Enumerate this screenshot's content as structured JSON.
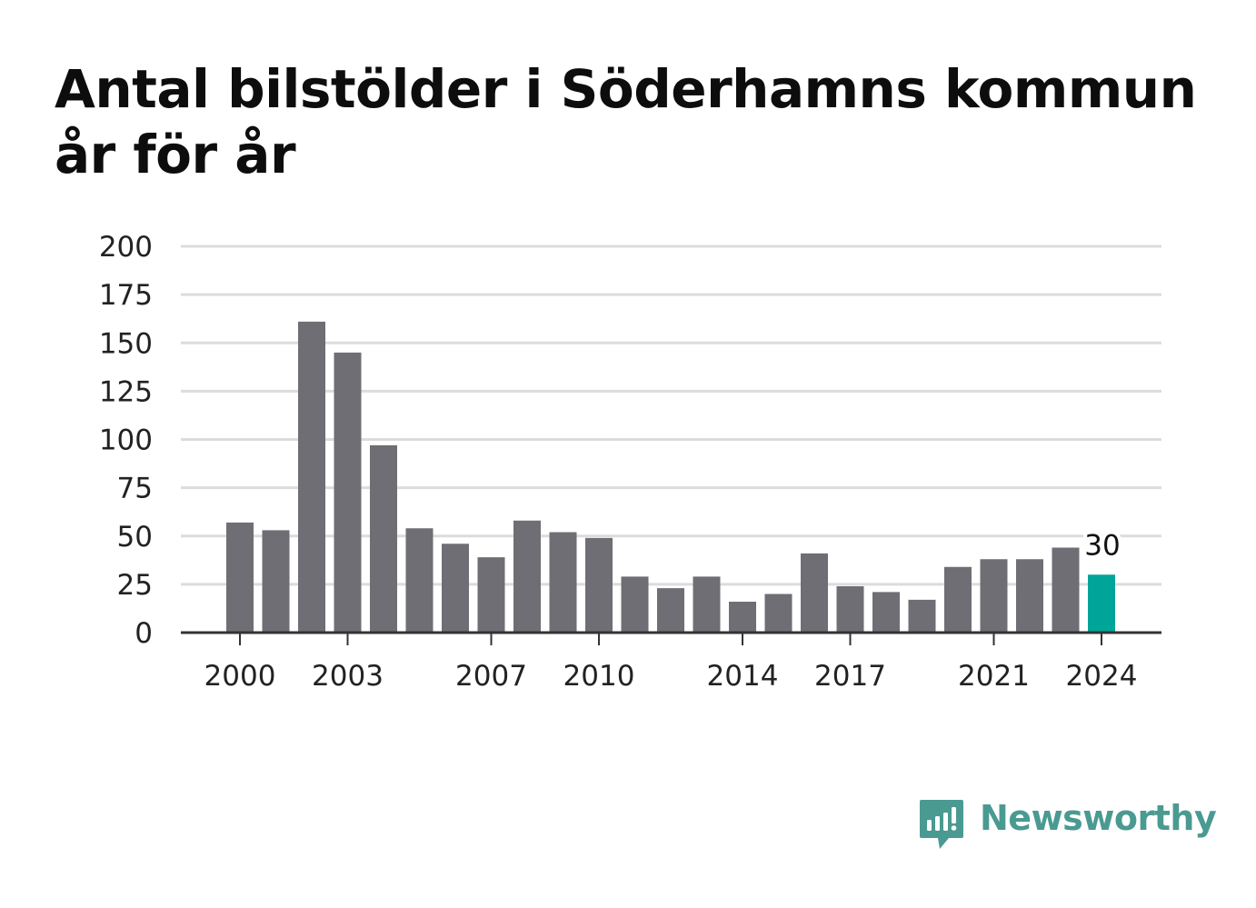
{
  "title": "Antal bilstölder i Söderhamns kommun år för år",
  "brand": {
    "name": "Newsworthy",
    "icon": "newsworthy-logo-icon"
  },
  "colors": {
    "bar": "#6f6e74",
    "highlight": "#00a59a",
    "grid": "#dcdcdc",
    "axis": "#333333",
    "brand": "#4a9a92"
  },
  "chart_data": {
    "type": "bar",
    "title": "Antal bilstölder i Söderhamns kommun år för år",
    "xlabel": "",
    "ylabel": "",
    "ylim": [
      0,
      200
    ],
    "yticks": [
      0,
      25,
      50,
      75,
      100,
      125,
      150,
      175,
      200
    ],
    "grid": true,
    "categories": [
      2000,
      2001,
      2002,
      2003,
      2004,
      2005,
      2006,
      2007,
      2008,
      2009,
      2010,
      2011,
      2012,
      2013,
      2014,
      2015,
      2016,
      2017,
      2018,
      2019,
      2020,
      2021,
      2022,
      2023,
      2024
    ],
    "xtick_labels": [
      "2000",
      "2003",
      "2007",
      "2010",
      "2014",
      "2017",
      "2021",
      "2024"
    ],
    "values": [
      57,
      53,
      161,
      145,
      97,
      54,
      46,
      39,
      58,
      52,
      49,
      29,
      23,
      29,
      16,
      20,
      41,
      24,
      21,
      17,
      34,
      38,
      38,
      44,
      30
    ],
    "highlight_category": 2024,
    "data_labels": [
      {
        "category": 2024,
        "text": "30"
      }
    ]
  }
}
